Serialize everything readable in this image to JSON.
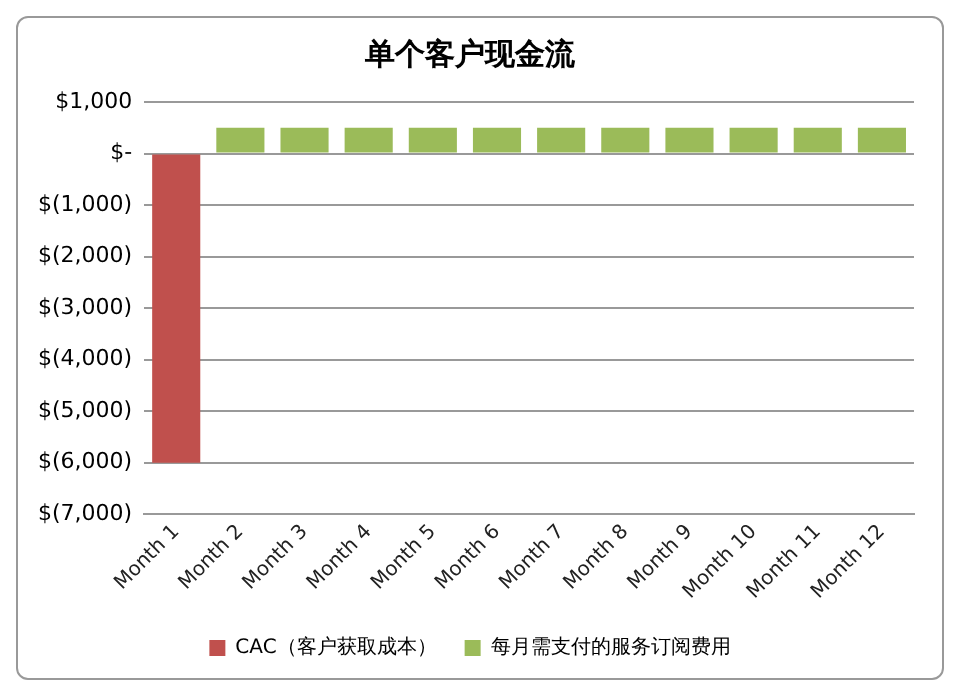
{
  "chart_data": {
    "type": "bar",
    "title": "单个客户现金流",
    "categories": [
      "Month 1",
      "Month 2",
      "Month 3",
      "Month 4",
      "Month 5",
      "Month 6",
      "Month 7",
      "Month 8",
      "Month 9",
      "Month 10",
      "Month 11",
      "Month 12"
    ],
    "series": [
      {
        "name": "CAC（客户获取成本）",
        "color": "#c0504d",
        "values": [
          -6000,
          null,
          null,
          null,
          null,
          null,
          null,
          null,
          null,
          null,
          null,
          null
        ]
      },
      {
        "name": "每月需支付的服务订阅费用",
        "color": "#9bbb59",
        "values": [
          null,
          500,
          500,
          500,
          500,
          500,
          500,
          500,
          500,
          500,
          500,
          500
        ]
      }
    ],
    "stacked": true,
    "ylim": [
      -7000,
      1000
    ],
    "yticks": [
      {
        "value": 1000,
        "label": "$1,000"
      },
      {
        "value": 0,
        "label": "$-"
      },
      {
        "value": -1000,
        "label": "$(1,000)"
      },
      {
        "value": -2000,
        "label": "$(2,000)"
      },
      {
        "value": -3000,
        "label": "$(3,000)"
      },
      {
        "value": -4000,
        "label": "$(4,000)"
      },
      {
        "value": -5000,
        "label": "$(5,000)"
      },
      {
        "value": -6000,
        "label": "$(6,000)"
      },
      {
        "value": -7000,
        "label": "$(7,000)"
      }
    ],
    "grid": "y",
    "legend": "bottom"
  }
}
